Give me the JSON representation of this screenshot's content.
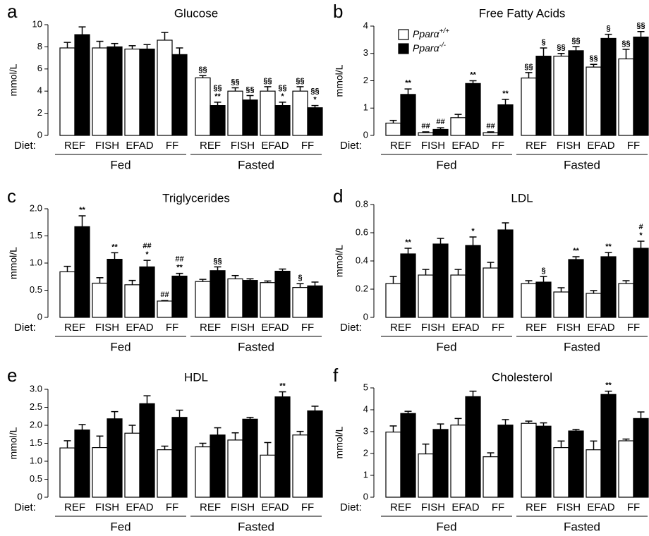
{
  "chart_data": [
    {
      "type": "bar",
      "panel": "a",
      "title": "Glucose",
      "y_label": "mmol/L",
      "x_prefix": "Diet:",
      "categories": [
        "REF",
        "FISH",
        "EFAD",
        "FF",
        "REF",
        "FISH",
        "EFAD",
        "FF"
      ],
      "groups": [
        "Fed",
        "Fasted"
      ],
      "ylim": [
        0,
        10
      ],
      "yticks": [
        0,
        2,
        4,
        6,
        8,
        10
      ],
      "series": [
        {
          "color": "#ffffff",
          "values": [
            7.9,
            7.9,
            7.8,
            8.6,
            5.2,
            4.0,
            4.0,
            4.0
          ],
          "errors": [
            0.5,
            0.6,
            0.3,
            0.7,
            0.2,
            0.3,
            0.4,
            0.4
          ],
          "annotations": [
            null,
            null,
            null,
            null,
            [
              "§§"
            ],
            [
              "§§"
            ],
            [
              "§§"
            ],
            [
              "§§"
            ]
          ]
        },
        {
          "color": "#000000",
          "values": [
            9.1,
            8.0,
            7.8,
            7.3,
            2.7,
            3.2,
            2.7,
            2.5
          ],
          "errors": [
            0.7,
            0.3,
            0.4,
            0.6,
            0.3,
            0.4,
            0.3,
            0.2
          ],
          "annotations": [
            null,
            null,
            null,
            null,
            [
              "§§",
              "**"
            ],
            [
              "§§"
            ],
            [
              "§§",
              "*"
            ],
            [
              "§§",
              "*"
            ]
          ]
        }
      ]
    },
    {
      "type": "bar",
      "panel": "b",
      "title": "Free Fatty Acids",
      "y_label": "mmol/L",
      "x_prefix": "Diet:",
      "categories": [
        "REF",
        "FISH",
        "EFAD",
        "FF",
        "REF",
        "FISH",
        "EFAD",
        "FF"
      ],
      "groups": [
        "Fed",
        "Fasted"
      ],
      "ylim": [
        0,
        4
      ],
      "yticks": [
        0,
        1,
        2,
        3,
        4
      ],
      "legend": "upper left",
      "series": [
        {
          "name": "Pparα+/+",
          "color": "#ffffff",
          "values": [
            0.45,
            0.1,
            0.65,
            0.1,
            2.1,
            2.9,
            2.5,
            2.8
          ],
          "errors": [
            0.1,
            0.03,
            0.12,
            0.03,
            0.2,
            0.1,
            0.1,
            0.35
          ],
          "annotations": [
            null,
            [
              "##"
            ],
            null,
            [
              "##"
            ],
            [
              "§§"
            ],
            [
              "§§"
            ],
            [
              "§§"
            ],
            [
              "§§"
            ]
          ]
        },
        {
          "name": "Pparα-/-",
          "color": "#000000",
          "values": [
            1.5,
            0.22,
            1.9,
            1.12,
            2.9,
            3.1,
            3.55,
            3.6
          ],
          "errors": [
            0.2,
            0.06,
            0.1,
            0.2,
            0.3,
            0.15,
            0.15,
            0.2
          ],
          "annotations": [
            [
              "**"
            ],
            [
              "##"
            ],
            [
              "**"
            ],
            [
              "**"
            ],
            [
              "§"
            ],
            [
              "§§"
            ],
            [
              "§"
            ],
            [
              "§§"
            ]
          ]
        }
      ]
    },
    {
      "type": "bar",
      "panel": "c",
      "title": "Triglycerides",
      "y_label": "mmol/L",
      "x_prefix": "Diet:",
      "categories": [
        "REF",
        "FISH",
        "EFAD",
        "FF",
        "REF",
        "FISH",
        "EFAD",
        "FF"
      ],
      "groups": [
        "Fed",
        "Fasted"
      ],
      "ylim": [
        0,
        2
      ],
      "yticks": [
        0,
        0.5,
        {
          "value": 1,
          "label": "1.0"
        },
        1.5,
        {
          "value": 2,
          "label": "2.0"
        }
      ],
      "series": [
        {
          "color": "#ffffff",
          "values": [
            0.84,
            0.63,
            0.6,
            0.3,
            0.66,
            0.71,
            0.64,
            0.55
          ],
          "errors": [
            0.1,
            0.1,
            0.08,
            0.01,
            0.04,
            0.06,
            0.03,
            0.07
          ],
          "annotations": [
            null,
            null,
            null,
            [
              "##"
            ],
            null,
            null,
            null,
            [
              "§"
            ]
          ]
        },
        {
          "color": "#000000",
          "values": [
            1.67,
            1.07,
            0.93,
            0.76,
            0.86,
            0.68,
            0.85,
            0.58
          ],
          "errors": [
            0.2,
            0.12,
            0.12,
            0.05,
            0.07,
            0.03,
            0.04,
            0.07
          ],
          "annotations": [
            [
              "**"
            ],
            [
              "**"
            ],
            [
              "##",
              "*"
            ],
            [
              "##",
              "**"
            ],
            [
              "§§"
            ],
            null,
            null,
            null
          ]
        }
      ]
    },
    {
      "type": "bar",
      "panel": "d",
      "title": "LDL",
      "y_label": "mmol/L",
      "x_prefix": "Diet:",
      "categories": [
        "REF",
        "FISH",
        "EFAD",
        "FF",
        "REF",
        "FISH",
        "EFAD",
        "FF"
      ],
      "groups": [
        "Fed",
        "Fasted"
      ],
      "ylim": [
        0,
        0.8
      ],
      "yticks": [
        0,
        0.2,
        0.4,
        0.6,
        0.8
      ],
      "series": [
        {
          "color": "#ffffff",
          "values": [
            0.24,
            0.3,
            0.3,
            0.35,
            0.24,
            0.18,
            0.17,
            0.24
          ],
          "errors": [
            0.05,
            0.04,
            0.04,
            0.04,
            0.02,
            0.03,
            0.02,
            0.02
          ],
          "annotations": [
            null,
            null,
            null,
            null,
            null,
            null,
            null,
            null
          ]
        },
        {
          "color": "#000000",
          "values": [
            0.45,
            0.52,
            0.51,
            0.62,
            0.25,
            0.41,
            0.43,
            0.49
          ],
          "errors": [
            0.04,
            0.04,
            0.06,
            0.05,
            0.04,
            0.02,
            0.03,
            0.05
          ],
          "annotations": [
            [
              "**"
            ],
            null,
            [
              "*"
            ],
            null,
            [
              "§"
            ],
            [
              "**"
            ],
            [
              "**"
            ],
            [
              "#",
              "*"
            ]
          ]
        }
      ]
    },
    {
      "type": "bar",
      "panel": "e",
      "title": "HDL",
      "y_label": "mmol/L",
      "x_prefix": "Diet:",
      "categories": [
        "REF",
        "FISH",
        "EFAD",
        "FF",
        "REF",
        "FISH",
        "EFAD",
        "FF"
      ],
      "groups": [
        "Fed",
        "Fasted"
      ],
      "ylim": [
        0,
        3
      ],
      "yticks": [
        0,
        0.5,
        {
          "value": 1,
          "label": "1.0"
        },
        1.5,
        {
          "value": 2,
          "label": "2.0"
        },
        2.5,
        {
          "value": 3,
          "label": "3.0"
        }
      ],
      "series": [
        {
          "color": "#ffffff",
          "values": [
            1.37,
            1.38,
            1.78,
            1.32,
            1.4,
            1.59,
            1.17,
            1.73
          ],
          "errors": [
            0.2,
            0.32,
            0.22,
            0.1,
            0.1,
            0.2,
            0.35,
            0.1
          ],
          "annotations": [
            null,
            null,
            null,
            null,
            null,
            null,
            null,
            null
          ]
        },
        {
          "color": "#000000",
          "values": [
            1.87,
            2.18,
            2.6,
            2.22,
            1.73,
            2.17,
            2.79,
            2.4
          ],
          "errors": [
            0.15,
            0.2,
            0.22,
            0.2,
            0.2,
            0.05,
            0.14,
            0.13
          ],
          "annotations": [
            null,
            null,
            null,
            null,
            null,
            null,
            [
              "**"
            ],
            null
          ]
        }
      ]
    },
    {
      "type": "bar",
      "panel": "f",
      "title": "Cholesterol",
      "y_label": "mmol/L",
      "x_prefix": "Diet:",
      "categories": [
        "REF",
        "FISH",
        "EFAD",
        "FF",
        "REF",
        "FISH",
        "EFAD",
        "FF"
      ],
      "groups": [
        "Fed",
        "Fasted"
      ],
      "ylim": [
        0,
        5
      ],
      "yticks": [
        0,
        1,
        2,
        3,
        4,
        5
      ],
      "series": [
        {
          "color": "#ffffff",
          "values": [
            2.98,
            1.98,
            3.3,
            1.85,
            3.38,
            2.27,
            2.17,
            2.58
          ],
          "errors": [
            0.28,
            0.45,
            0.3,
            0.18,
            0.1,
            0.3,
            0.4,
            0.08
          ],
          "annotations": [
            null,
            null,
            null,
            null,
            null,
            null,
            null,
            null
          ]
        },
        {
          "color": "#000000",
          "values": [
            3.83,
            3.1,
            4.6,
            3.3,
            3.25,
            3.03,
            4.7,
            3.6
          ],
          "errors": [
            0.1,
            0.25,
            0.25,
            0.25,
            0.15,
            0.07,
            0.15,
            0.3
          ],
          "annotations": [
            null,
            null,
            null,
            null,
            null,
            null,
            [
              "**"
            ],
            null
          ]
        }
      ]
    }
  ]
}
